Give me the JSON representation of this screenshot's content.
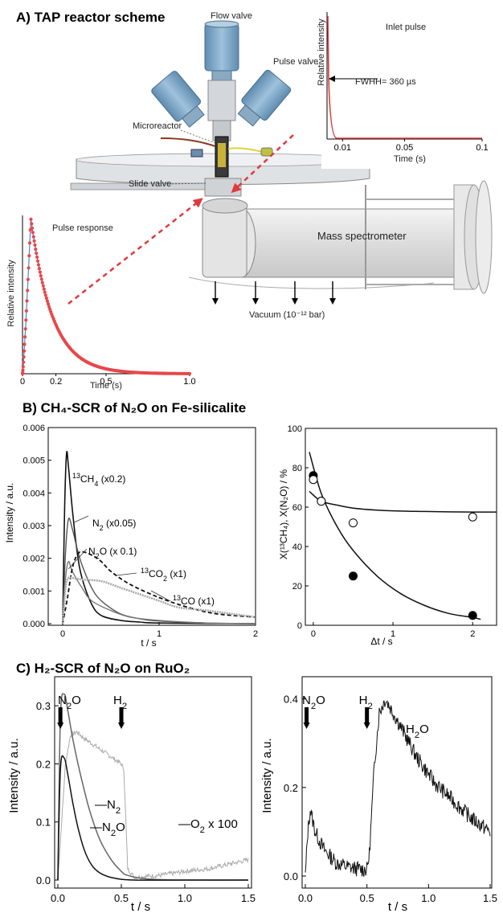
{
  "sections": {
    "a": "A) TAP reactor scheme",
    "b": "B) CH₄-SCR of N₂O on Fe-silicalite",
    "c": "C) H₂-SCR of N₂O on RuO₂"
  },
  "scheme": {
    "flow_valve": "Flow valve",
    "pulse_valve": "Pulse valve",
    "microreactor": "Microreactor",
    "slide_valve": "Slide valve",
    "mass_spectrometer": "Mass spectrometer",
    "vacuum": "Vacuum (10⁻¹² bar)"
  },
  "chart_data": [
    {
      "type": "line",
      "title": "Inlet pulse",
      "annotation": "FWHH= 360 µs",
      "xlabel": "Time (s)",
      "ylabel": "Relative intensity",
      "xticks": [
        "0.01",
        "0.05",
        "0.1"
      ],
      "xlim": [
        0,
        0.1
      ],
      "series": [
        {
          "x": [
            0.0,
            0.0005,
            0.001,
            0.0015,
            0.002,
            0.003,
            0.005,
            0.01,
            0.1
          ],
          "y": [
            1.0,
            0.8,
            0.5,
            0.3,
            0.15,
            0.05,
            0.01,
            0.0,
            0.0
          ]
        }
      ]
    },
    {
      "type": "scatter",
      "title": "Pulse response",
      "xlabel": "Time (s)",
      "ylabel": "Relative intensity",
      "xticks": [
        "0",
        "0.2",
        "0.5",
        "1.0"
      ],
      "xlim": [
        0,
        1.0
      ]
    },
    {
      "type": "line",
      "xlabel": "t / s",
      "ylabel": "Intensity / a.u.",
      "xlim": [
        0,
        2
      ],
      "ylim": [
        0,
        0.006
      ],
      "xticks": [
        "0",
        "1",
        "2"
      ],
      "yticks": [
        "0.000",
        "0.001",
        "0.002",
        "0.003",
        "0.004",
        "0.005",
        "0.006"
      ],
      "series": [
        {
          "name": "13CH4 (x0.2)",
          "x": [
            0,
            0.02,
            0.04,
            0.06,
            0.1,
            0.15,
            0.2,
            0.3,
            0.4,
            0.6,
            0.8,
            1.0,
            2.0
          ],
          "y": [
            0,
            0.0035,
            0.0052,
            0.0048,
            0.0035,
            0.0022,
            0.0014,
            0.0006,
            0.00025,
            0.0001,
            5e-05,
            2e-05,
            0
          ]
        },
        {
          "name": "N2 (x0.05)",
          "x": [
            0,
            0.03,
            0.06,
            0.1,
            0.15,
            0.2,
            0.3,
            0.4,
            0.6,
            0.8,
            1.0,
            1.5,
            2.0
          ],
          "y": [
            0,
            0.0022,
            0.0032,
            0.0029,
            0.0023,
            0.0018,
            0.0011,
            0.0007,
            0.0003,
            0.00015,
            8e-05,
            2e-05,
            0
          ]
        },
        {
          "name": "N2O (x 0.1)",
          "x": [
            0,
            0.03,
            0.06,
            0.1,
            0.2,
            0.3,
            0.5,
            0.7,
            1.0,
            1.5,
            2.0
          ],
          "y": [
            0,
            0.0014,
            0.0019,
            0.0016,
            0.0011,
            0.0007,
            0.0004,
            0.0002,
            0.0001,
            2e-05,
            0
          ]
        },
        {
          "name": "13CO2 (x1)",
          "x": [
            0,
            0.05,
            0.1,
            0.15,
            0.2,
            0.3,
            0.4,
            0.5,
            0.7,
            1.0,
            1.3,
            1.6,
            2.0
          ],
          "y": [
            0,
            0.0008,
            0.0017,
            0.0021,
            0.0022,
            0.0021,
            0.0019,
            0.0016,
            0.0012,
            0.0008,
            0.0005,
            0.0003,
            0.0002
          ]
        },
        {
          "name": "13CO (x1)",
          "x": [
            0,
            0.03,
            0.06,
            0.1,
            0.2,
            0.4,
            0.6,
            0.8,
            1.0,
            1.2,
            1.5,
            2.0
          ],
          "y": [
            0,
            0.0011,
            0.0014,
            0.0014,
            0.00135,
            0.0013,
            0.0011,
            0.0009,
            0.0007,
            0.0005,
            0.0004,
            0.0002
          ]
        }
      ]
    },
    {
      "type": "scatter",
      "xlabel": "Δt / s",
      "ylabel": "X(¹³CH₄), X(N₂O) / %",
      "xlim": [
        -0.1,
        2.3
      ],
      "ylim": [
        0,
        100
      ],
      "xticks": [
        "0",
        "1",
        "2"
      ],
      "yticks": [
        "0",
        "20",
        "40",
        "60",
        "80",
        "100"
      ],
      "series": [
        {
          "x": [
            0,
            0.1,
            0.5,
            2.0
          ],
          "y": [
            76,
            63,
            25,
            5
          ],
          "filled": true,
          "fit_x": [
            -0.05,
            0.1,
            0.3,
            0.5,
            0.8,
            1.1,
            1.4,
            1.7,
            2.0,
            2.1
          ],
          "fit_y": [
            88,
            67,
            50,
            38,
            25,
            16,
            10,
            6,
            4,
            3
          ]
        },
        {
          "x": [
            0,
            0.1,
            0.5,
            2.0
          ],
          "y": [
            74,
            63,
            52,
            55
          ],
          "filled": false,
          "fit_x": [
            -0.05,
            0.1,
            0.3,
            0.5,
            0.8,
            1.1,
            1.4,
            1.7,
            2.0,
            2.3
          ],
          "fit_y": [
            68,
            63,
            61,
            59.5,
            58.5,
            58,
            57.8,
            57.6,
            57.5,
            57.5
          ]
        }
      ]
    },
    {
      "type": "line",
      "xlabel": "t / s",
      "ylabel": "Intensity / a.u.",
      "xlim": [
        0,
        1.5
      ],
      "ylim": [
        0,
        0.35
      ],
      "xticks": [
        "0.0",
        "0.5",
        "1.0",
        "1.5"
      ],
      "yticks": [
        "0.0",
        "0.1",
        "0.2",
        "0.3"
      ],
      "arrows": [
        "N₂O",
        "H₂"
      ],
      "series": [
        {
          "name": "N₂",
          "x": [
            0,
            0.02,
            0.05,
            0.08,
            0.12,
            0.18,
            0.25,
            0.33,
            0.42,
            0.5,
            0.55,
            0.7,
            1.0,
            1.5
          ],
          "y": [
            0,
            0.28,
            0.32,
            0.29,
            0.24,
            0.18,
            0.12,
            0.07,
            0.035,
            0.015,
            0.008,
            0.002,
            0,
            0
          ]
        },
        {
          "name": "N₂O",
          "x": [
            0,
            0.02,
            0.05,
            0.08,
            0.12,
            0.17,
            0.22,
            0.28,
            0.35,
            0.45,
            0.6,
            1.0,
            1.5
          ],
          "y": [
            0,
            0.19,
            0.21,
            0.18,
            0.13,
            0.08,
            0.045,
            0.022,
            0.01,
            0.003,
            0,
            0,
            0
          ]
        },
        {
          "name": "O₂ x 100",
          "x": [
            0,
            0.03,
            0.06,
            0.1,
            0.15,
            0.2,
            0.3,
            0.4,
            0.5,
            0.52,
            0.55,
            0.6,
            0.8,
            1.0,
            1.2,
            1.4,
            1.5
          ],
          "y": [
            0,
            0.1,
            0.2,
            0.25,
            0.255,
            0.245,
            0.23,
            0.215,
            0.2,
            0.19,
            0.02,
            0.005,
            0.008,
            0.015,
            0.02,
            0.03,
            0.035
          ]
        }
      ]
    },
    {
      "type": "line",
      "xlabel": "t / s",
      "ylabel": "Intensity / a.u.",
      "xlim": [
        0,
        1.5
      ],
      "ylim": [
        0,
        0.45
      ],
      "xticks": [
        "0.0",
        "0.5",
        "1.0",
        "1.5"
      ],
      "yticks": [
        "0.0",
        "0.2",
        "0.4"
      ],
      "arrows": [
        "N₂O",
        "H₂"
      ],
      "series": [
        {
          "name": "H₂O",
          "x": [
            0,
            0.02,
            0.04,
            0.08,
            0.15,
            0.25,
            0.35,
            0.45,
            0.5,
            0.52,
            0.56,
            0.6,
            0.65,
            0.75,
            0.9,
            1.05,
            1.2,
            1.35,
            1.5
          ],
          "y": [
            0,
            0.1,
            0.15,
            0.1,
            0.06,
            0.03,
            0.02,
            0.015,
            0.015,
            0.05,
            0.25,
            0.37,
            0.4,
            0.35,
            0.27,
            0.21,
            0.17,
            0.13,
            0.1
          ]
        }
      ]
    }
  ]
}
